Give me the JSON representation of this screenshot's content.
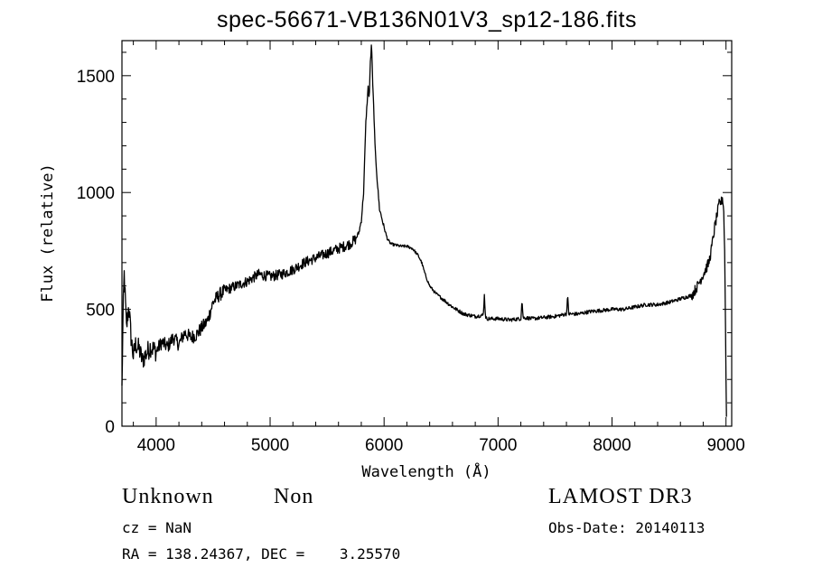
{
  "chart_data": {
    "type": "line",
    "title": "spec-56671-VB136N01V3_sp12-186.fits",
    "xlabel": "Wavelength (Å)",
    "ylabel": "Flux (relative)",
    "xlim": [
      3700,
      9050
    ],
    "ylim": [
      0,
      1650
    ],
    "xticks": [
      4000,
      5000,
      6000,
      7000,
      8000,
      9000
    ],
    "yticks": [
      0,
      500,
      1000,
      1500
    ],
    "grid": false,
    "series": [
      {
        "x": [
          3700,
          3710,
          3720,
          3740,
          3760,
          3780,
          3800,
          3820,
          3850,
          3880,
          3900,
          3950,
          4000,
          4050,
          4100,
          4150,
          4200,
          4250,
          4300,
          4350,
          4400,
          4450,
          4500,
          4550,
          4600,
          4700,
          4800,
          4900,
          5000,
          5100,
          5200,
          5300,
          5400,
          5500,
          5600,
          5650,
          5700,
          5750,
          5780,
          5800,
          5820,
          5840,
          5860,
          5870,
          5880,
          5890,
          5900,
          5910,
          5920,
          5940,
          5960,
          6000,
          6030,
          6060,
          6100,
          6150,
          6200,
          6250,
          6300,
          6330,
          6360,
          6400,
          6450,
          6500,
          6600,
          6700,
          6800,
          6870,
          6880,
          6890,
          6900,
          7000,
          7100,
          7200,
          7210,
          7220,
          7300,
          7400,
          7500,
          7600,
          7610,
          7620,
          7700,
          7800,
          7900,
          8000,
          8100,
          8200,
          8300,
          8400,
          8500,
          8600,
          8700,
          8750,
          8800,
          8850,
          8870,
          8900,
          8920,
          8940,
          8960,
          8970,
          8980,
          8990,
          9000,
          9005
        ],
        "y": [
          160,
          480,
          650,
          420,
          520,
          380,
          300,
          350,
          330,
          280,
          300,
          340,
          320,
          360,
          340,
          380,
          350,
          400,
          380,
          390,
          420,
          450,
          530,
          560,
          580,
          600,
          620,
          650,
          640,
          650,
          670,
          700,
          720,
          740,
          760,
          770,
          780,
          800,
          830,
          880,
          1000,
          1300,
          1450,
          1400,
          1560,
          1640,
          1460,
          1350,
          1200,
          1050,
          930,
          850,
          800,
          780,
          775,
          770,
          770,
          760,
          730,
          700,
          650,
          600,
          570,
          550,
          510,
          480,
          470,
          475,
          560,
          470,
          460,
          460,
          455,
          460,
          540,
          465,
          460,
          465,
          470,
          480,
          560,
          480,
          480,
          490,
          495,
          500,
          500,
          510,
          520,
          520,
          530,
          545,
          560,
          600,
          650,
          700,
          750,
          850,
          900,
          950,
          960,
          980,
          920,
          700,
          200,
          0
        ]
      }
    ]
  },
  "info": {
    "object_class": "Unknown",
    "object_subclass": "Non",
    "survey": "LAMOST DR3",
    "redshift": "cz = NaN",
    "obs_date": "Obs-Date: 20140113",
    "coords": "RA = 138.24367, DEC =    3.25570"
  }
}
